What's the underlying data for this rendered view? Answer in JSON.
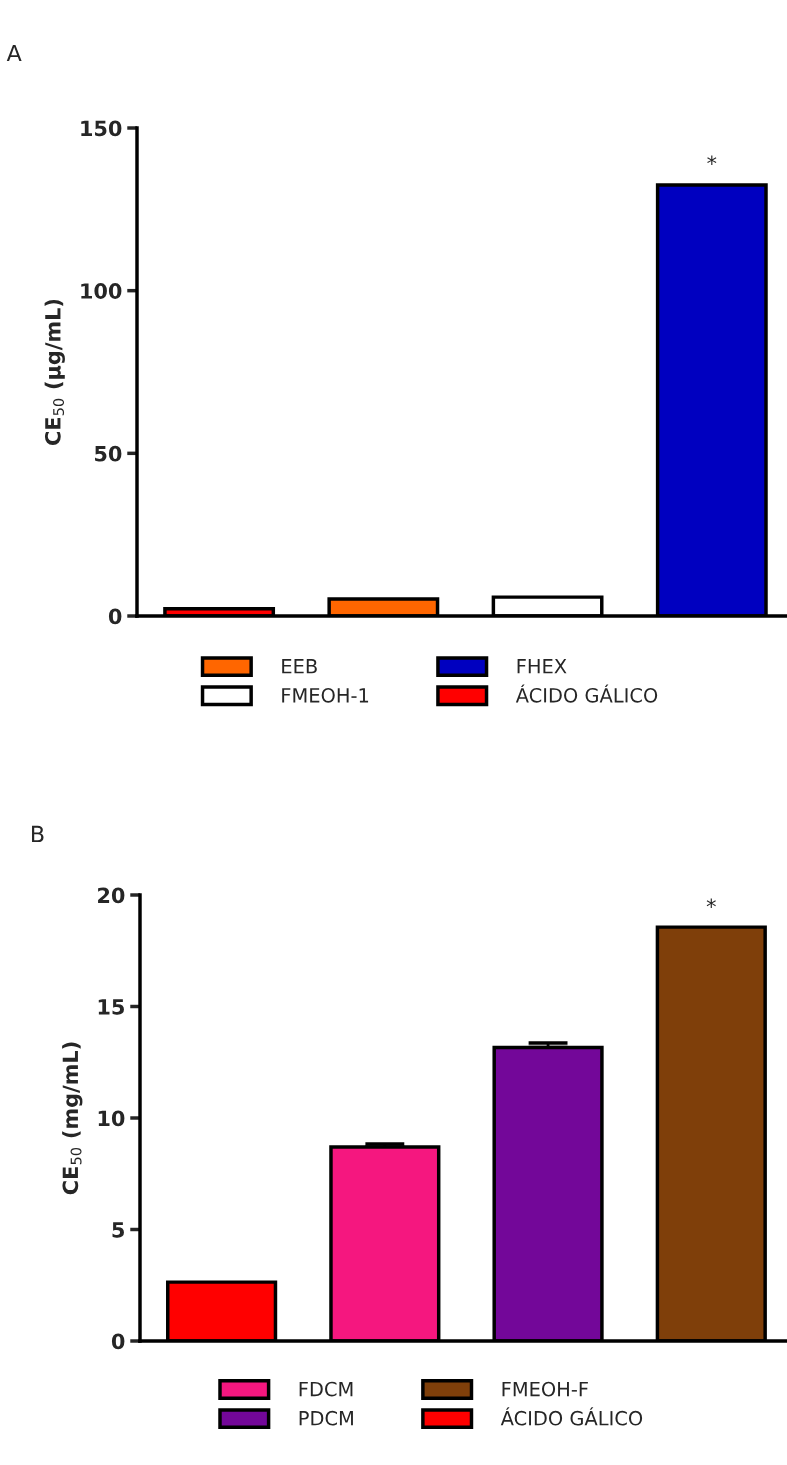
{
  "chart_data": [
    {
      "type": "bar",
      "title": "A",
      "ylabel": "CE$_{50}$ (µg/mL)",
      "categories": [
        null,
        null,
        null,
        null
      ],
      "series": [
        {
          "name": "EEB",
          "color": "#ff6600",
          "values": [
            null,
            5.2,
            null,
            null
          ]
        },
        {
          "name": "FMEOH-1",
          "color": "#ffffff",
          "values": [
            null,
            null,
            5.8,
            null
          ]
        },
        {
          "name": "FHEX",
          "color": "#0000c0",
          "values": [
            null,
            null,
            null,
            132.5
          ]
        },
        {
          "name": "ÁCIDO GÁLICO",
          "color": "#ff0000",
          "values": [
            2.2,
            null,
            null,
            null
          ]
        }
      ],
      "ylim": [
        0,
        150
      ],
      "yticks": [
        0,
        50,
        100,
        150
      ],
      "legend": "bottom",
      "annotations": [
        "*"
      ]
    },
    {
      "type": "bar",
      "title": "B",
      "ylabel": "CE$_{50}$ (mg/mL)",
      "categories": [
        null,
        null,
        null,
        null
      ],
      "series": [
        {
          "name": "FDCM",
          "color": "#f5177f",
          "values": [
            null,
            8.7,
            null,
            null
          ],
          "errors": [
            null,
            0.13,
            null,
            null
          ]
        },
        {
          "name": "PDCM",
          "color": "#730799",
          "values": [
            null,
            null,
            13.16,
            null
          ],
          "errors": [
            null,
            null,
            0.2,
            null
          ]
        },
        {
          "name": "FMEOH-F",
          "color": "#7f3f0a",
          "values": [
            null,
            null,
            null,
            18.56
          ]
        },
        {
          "name": "ÁCIDO GÁLICO",
          "color": "#ff0000",
          "values": [
            2.64,
            null,
            null,
            null
          ]
        }
      ],
      "ylim": [
        0,
        20
      ],
      "yticks": [
        0,
        5,
        10,
        15,
        20
      ],
      "legend": "bottom",
      "annotations": [
        "*"
      ]
    }
  ]
}
